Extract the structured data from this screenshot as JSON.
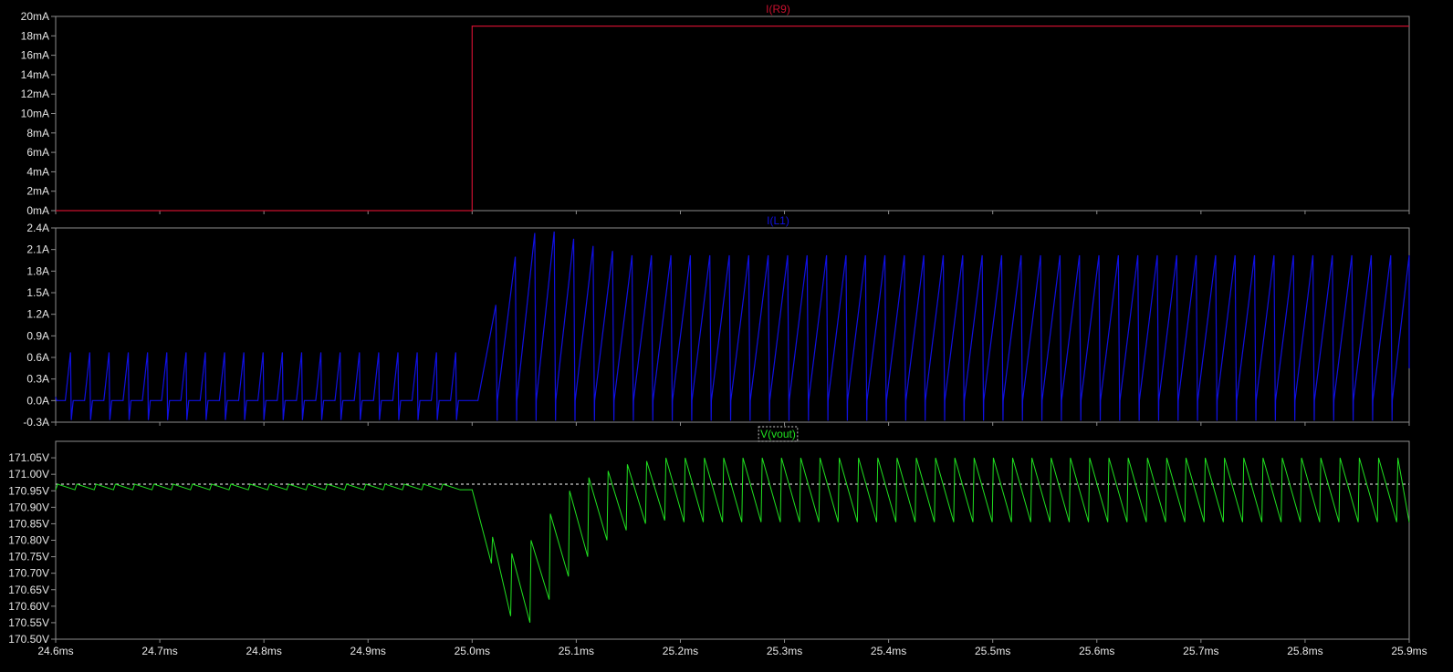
{
  "colors": {
    "background": "#000000",
    "frame": "#8c8c8c",
    "tick_text": "#e6e6e6",
    "cursor_line": "#ffffff"
  },
  "chart_data": [
    {
      "type": "line",
      "title": "I(R9)",
      "color": "#c8102e",
      "xlim": [
        24.6,
        25.9
      ],
      "ylim": [
        0,
        20
      ],
      "yticks": [
        0,
        2,
        4,
        6,
        8,
        10,
        12,
        14,
        16,
        18,
        20
      ],
      "ytick_labels": [
        "0mA",
        "2mA",
        "4mA",
        "6mA",
        "8mA",
        "10mA",
        "12mA",
        "14mA",
        "16mA",
        "18mA",
        "20mA"
      ],
      "series": [
        {
          "x": [
            24.6,
            25.0,
            25.0,
            25.9
          ],
          "y": [
            0,
            0,
            19.0,
            19.0
          ]
        }
      ]
    },
    {
      "type": "line",
      "title": "I(L1)",
      "color": "#1010e0",
      "xlim": [
        24.6,
        25.9
      ],
      "ylim": [
        -0.3,
        2.4
      ],
      "yticks": [
        -0.3,
        0.0,
        0.3,
        0.6,
        0.9,
        1.2,
        1.5,
        1.8,
        2.1,
        2.4
      ],
      "ytick_labels": [
        "-0.3A",
        "0.0A",
        "0.3A",
        "0.6A",
        "0.9A",
        "1.2A",
        "1.5A",
        "1.8A",
        "2.1A",
        "2.4A"
      ],
      "waveform": {
        "period_ms": 0.0185,
        "before_step": {
          "peak": 0.67,
          "baseline": 0.0,
          "undershoot": -0.27
        },
        "step_time_ms": 25.0,
        "after_step": {
          "transient_peaks": [
            1.33,
            2.0,
            2.33,
            2.35,
            2.25,
            2.15,
            2.08
          ],
          "steady_peak": 2.02,
          "trough": -0.28
        }
      }
    },
    {
      "type": "line",
      "title": "V(vout)",
      "color": "#20e020",
      "xlim": [
        24.6,
        25.9
      ],
      "ylim": [
        170.5,
        171.1
      ],
      "yticks": [
        170.5,
        170.55,
        170.6,
        170.65,
        170.7,
        170.75,
        170.8,
        170.85,
        170.9,
        170.95,
        171.0,
        171.05
      ],
      "ytick_labels": [
        "170.50V",
        "170.55V",
        "170.60V",
        "170.65V",
        "170.70V",
        "170.75V",
        "170.80V",
        "170.85V",
        "170.90V",
        "170.95V",
        "171.00V",
        "171.05V"
      ],
      "reference_level": 170.97,
      "waveform": {
        "period_ms": 0.0185,
        "before_step": {
          "high": 170.97,
          "low": 170.953
        },
        "step_time_ms": 25.0,
        "after_step": {
          "transient_highs": [
            170.95,
            170.81,
            170.76,
            170.8,
            170.88,
            170.95,
            170.99,
            171.01,
            171.03,
            171.04
          ],
          "transient_lows": [
            170.73,
            170.57,
            170.55,
            170.62,
            170.69,
            170.75,
            170.8,
            170.83,
            170.85,
            170.86
          ],
          "steady_high": 171.05,
          "steady_low": 170.855
        }
      }
    }
  ],
  "x_axis": {
    "ticks": [
      24.6,
      24.7,
      24.8,
      24.9,
      25.0,
      25.1,
      25.2,
      25.3,
      25.4,
      25.5,
      25.6,
      25.7,
      25.8,
      25.9
    ],
    "labels": [
      "24.6ms",
      "24.7ms",
      "24.8ms",
      "24.9ms",
      "25.0ms",
      "25.1ms",
      "25.2ms",
      "25.3ms",
      "25.4ms",
      "25.5ms",
      "25.6ms",
      "25.7ms",
      "25.8ms",
      "25.9ms"
    ]
  }
}
